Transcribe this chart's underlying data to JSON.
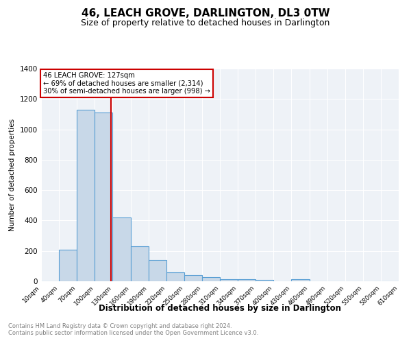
{
  "title": "46, LEACH GROVE, DARLINGTON, DL3 0TW",
  "subtitle": "Size of property relative to detached houses in Darlington",
  "xlabel": "Distribution of detached houses by size in Darlington",
  "ylabel": "Number of detached properties",
  "footnote1": "Contains HM Land Registry data © Crown copyright and database right 2024.",
  "footnote2": "Contains public sector information licensed under the Open Government Licence v3.0.",
  "bar_color": "#c8d8e8",
  "bar_edge_color": "#5a9fd4",
  "background_color": "#eef2f7",
  "grid_color": "#ffffff",
  "annotation_box_color": "#cc0000",
  "annotation_line_color": "#cc0000",
  "bins": [
    10,
    40,
    70,
    100,
    130,
    160,
    190,
    220,
    250,
    280,
    310,
    340,
    370,
    400,
    430,
    460,
    490,
    520,
    550,
    580,
    610
  ],
  "counts": [
    0,
    210,
    1130,
    1110,
    420,
    230,
    140,
    60,
    40,
    25,
    15,
    15,
    10,
    0,
    15,
    0,
    0,
    0,
    0,
    0
  ],
  "property_size": 127,
  "annotation_text_line1": "46 LEACH GROVE: 127sqm",
  "annotation_text_line2": "← 69% of detached houses are smaller (2,314)",
  "annotation_text_line3": "30% of semi-detached houses are larger (998) →",
  "vline_x": 127,
  "ylim": [
    0,
    1400
  ],
  "title_fontsize": 11,
  "subtitle_fontsize": 9
}
